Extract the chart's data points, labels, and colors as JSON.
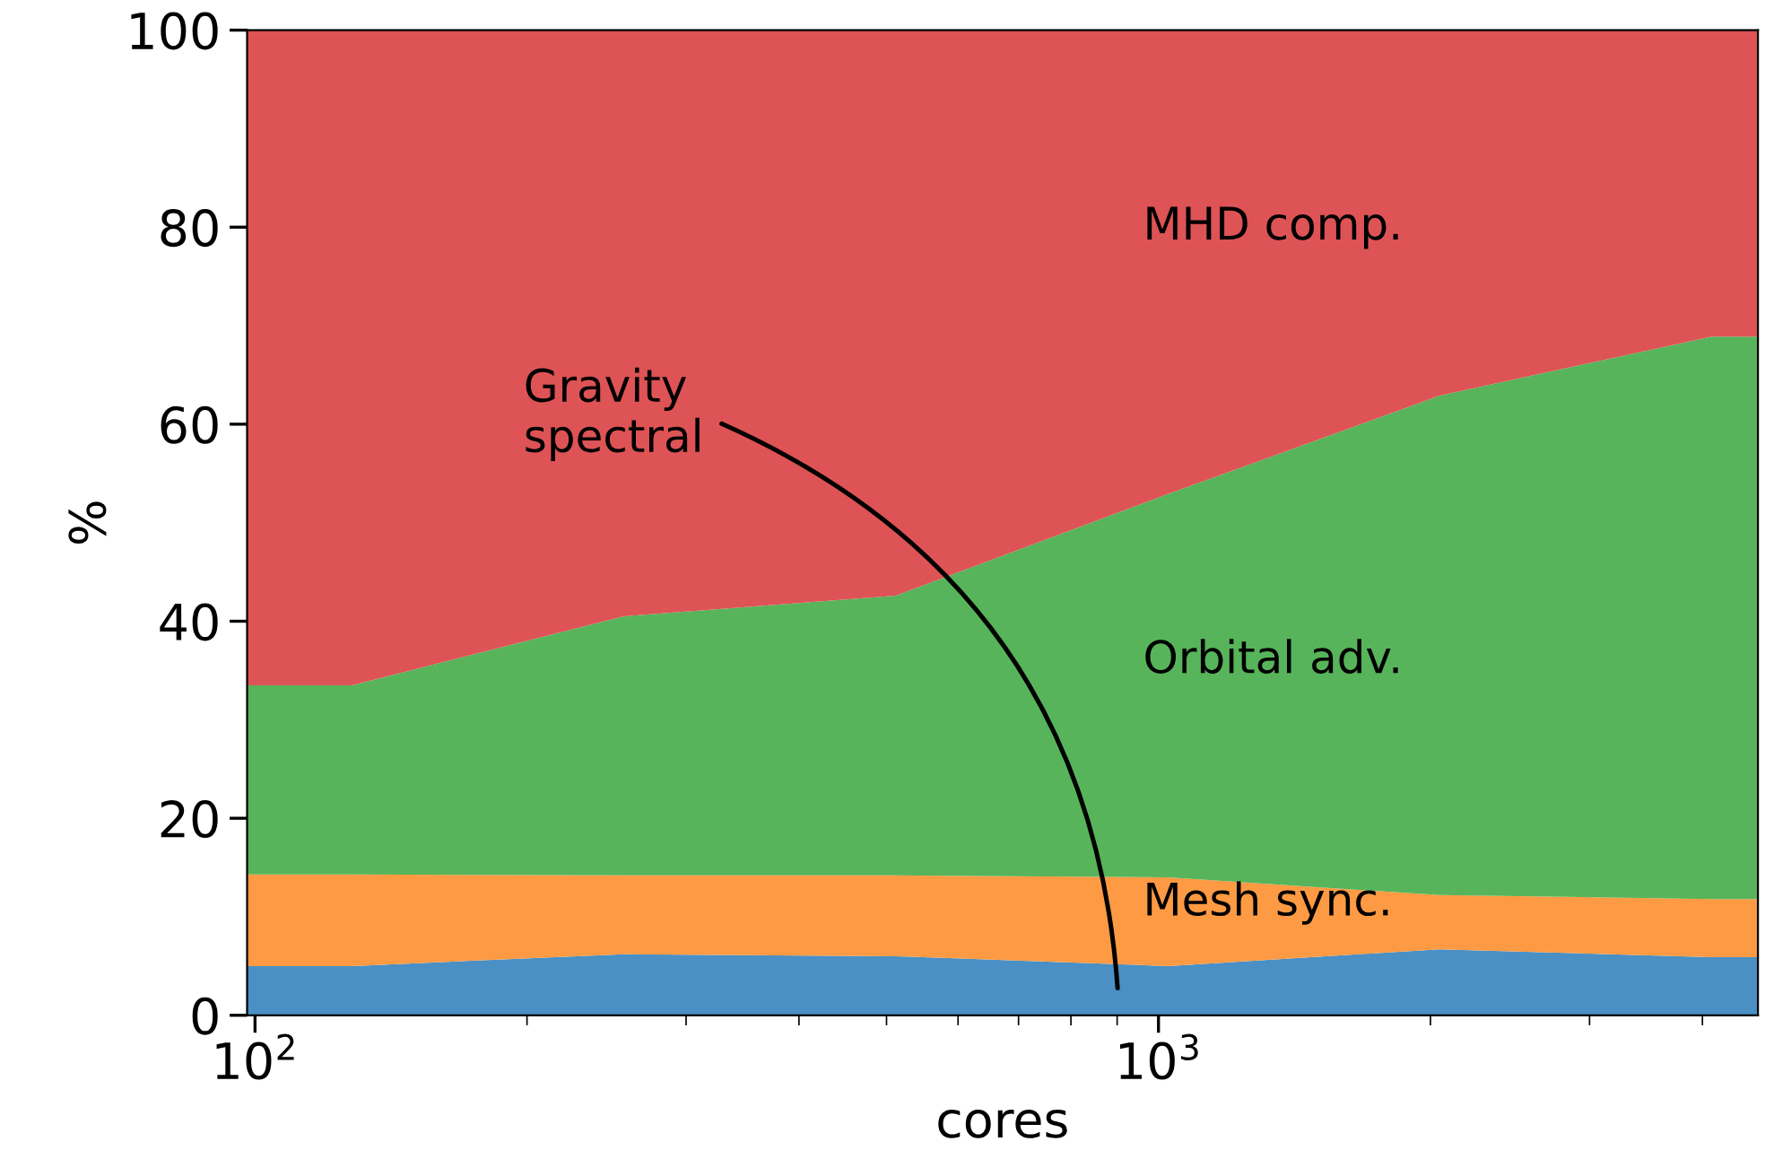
{
  "chart_data": {
    "type": "area",
    "stacked": true,
    "log": "x",
    "xlabel": "cores",
    "ylabel": "%",
    "x": [
      98,
      128,
      256,
      512,
      1024,
      2048,
      4096,
      4608
    ],
    "series": [
      {
        "name": "Gravity spectral",
        "color": "#4a90c4",
        "values": [
          5.0,
          5.0,
          6.2,
          6.0,
          5.0,
          6.7,
          5.9,
          5.9
        ]
      },
      {
        "name": "Mesh sync.",
        "color": "#fd9a43",
        "values": [
          9.3,
          9.3,
          8.0,
          8.2,
          9.0,
          5.5,
          5.9,
          5.9
        ]
      },
      {
        "name": "Orbital adv.",
        "color": "#57b45a",
        "values": [
          19.2,
          19.2,
          26.3,
          28.4,
          38.9,
          50.7,
          57.1,
          57.1
        ]
      },
      {
        "name": "MHD comp.",
        "color": "#de5355",
        "values": [
          66.5,
          66.5,
          59.5,
          57.4,
          47.1,
          37.1,
          31.1,
          31.1
        ]
      }
    ],
    "xlim": [
      98,
      4608
    ],
    "xticks": [
      {
        "value": 100,
        "label": "10$^{2}$"
      },
      {
        "value": 1000,
        "label": "10$^{3}$"
      }
    ],
    "ylim": [
      0,
      100
    ],
    "yticks": [
      0,
      20,
      40,
      60,
      80,
      100
    ],
    "grid": false,
    "legend": false
  }
}
